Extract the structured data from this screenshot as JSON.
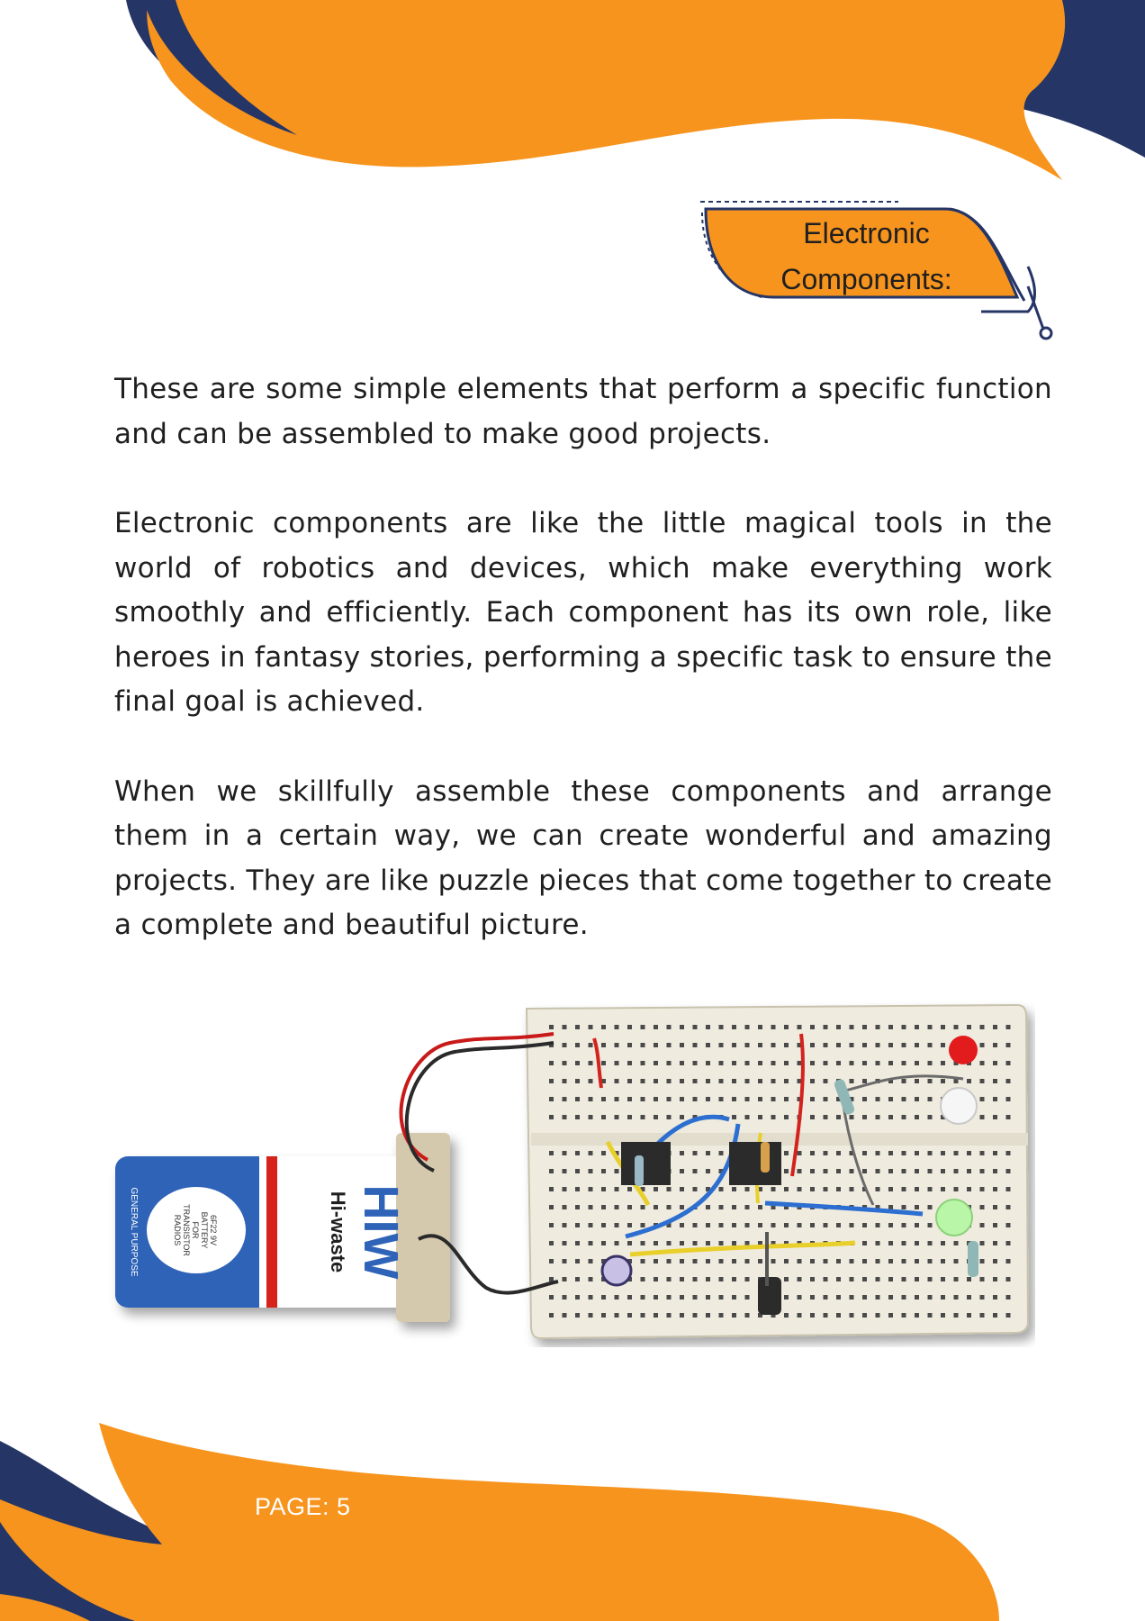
{
  "header": {
    "section_title_line1": "Electronic",
    "section_title_line2": "Components:"
  },
  "paragraphs": [
    "These are some simple elements that perform a specific function and can be assembled to make good projects.",
    "Electronic components are like the little magical tools in the world of robotics and devices, which make everything work smoothly and efficiently. Each component has its own role, like heroes in fantasy stories, performing a  specific task to ensure the final goal is achieved.",
    "When we skillfully assemble these components and arrange them in a certain way, we can create wonderful and amazing projects. They are like puzzle pieces that come together to create a complete and beautiful picture."
  ],
  "figure": {
    "battery_brand": "HIW",
    "battery_subtitle": "Hi-waste",
    "battery_label_1": "6F22 9V",
    "battery_label_2": "BATTERY",
    "battery_label_3": "FOR",
    "battery_label_4": "TRANSISTOR",
    "battery_label_5": "RADIOS",
    "battery_side_text": "GENERAL PURPOSE"
  },
  "footer": {
    "page_label": "PAGE: 5"
  },
  "colors": {
    "orange": "#F7941D",
    "navy": "#253566",
    "text": "#1f1f1f"
  }
}
